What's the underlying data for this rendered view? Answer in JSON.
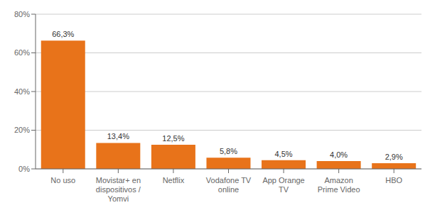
{
  "chart_data": {
    "type": "bar",
    "categories": [
      "No uso",
      "Movistar+ en\ndispositivos /\nYomvi",
      "Netflix",
      "Vodafone TV\nonline",
      "App Orange\nTV",
      "Amazon\nPrime Video",
      "HBO"
    ],
    "values": [
      66.3,
      13.4,
      12.5,
      5.8,
      4.5,
      4.0,
      2.9
    ],
    "value_labels": [
      "66,3%",
      "13,4%",
      "12,5%",
      "5,8%",
      "4,5%",
      "4,0%",
      "2,9%"
    ],
    "color": "#E8731A",
    "ylim": [
      0,
      80
    ],
    "yticks": [
      {
        "value": 0,
        "label": "0%"
      },
      {
        "value": 20,
        "label": "20%"
      },
      {
        "value": 40,
        "label": "40%"
      },
      {
        "value": 60,
        "label": "60%"
      },
      {
        "value": 80,
        "label": "80%"
      }
    ],
    "grid": true,
    "data_labels": true
  }
}
